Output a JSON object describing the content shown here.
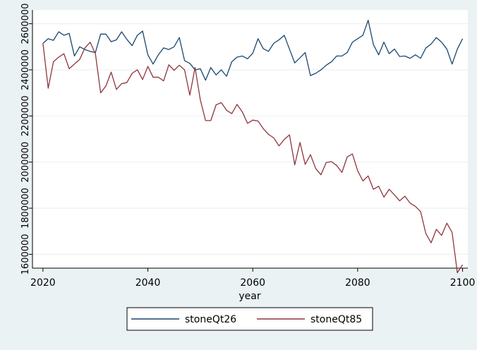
{
  "chart_data": {
    "type": "line",
    "title": "",
    "xlabel": "year",
    "ylabel": "",
    "xlim": [
      2018,
      2101
    ],
    "ylim": [
      1540000,
      2660000
    ],
    "x_ticks": [
      2020,
      2040,
      2060,
      2080,
      2100
    ],
    "y_ticks": [
      1600000,
      1800000,
      2000000,
      2200000,
      2400000,
      2600000
    ],
    "y_tick_labels": [
      "1600000",
      "1800000",
      "2000000",
      "2200000",
      "2400000",
      "2600000"
    ],
    "grid": true,
    "legend_position": "bottom",
    "colors": {
      "background": "#eaf2f3",
      "plot_area": "#ffffff",
      "grid": "#eaf2f3"
    },
    "x": [
      2020,
      2021,
      2022,
      2023,
      2024,
      2025,
      2026,
      2027,
      2028,
      2029,
      2030,
      2031,
      2032,
      2033,
      2034,
      2035,
      2036,
      2037,
      2038,
      2039,
      2040,
      2041,
      2042,
      2043,
      2044,
      2045,
      2046,
      2047,
      2048,
      2049,
      2050,
      2051,
      2052,
      2053,
      2054,
      2055,
      2056,
      2057,
      2058,
      2059,
      2060,
      2061,
      2062,
      2063,
      2064,
      2065,
      2066,
      2067,
      2068,
      2069,
      2070,
      2071,
      2072,
      2073,
      2074,
      2075,
      2076,
      2077,
      2078,
      2079,
      2080,
      2081,
      2082,
      2083,
      2084,
      2085,
      2086,
      2087,
      2088,
      2089,
      2090,
      2091,
      2092,
      2093,
      2094,
      2095,
      2096,
      2097,
      2098,
      2099,
      2100
    ],
    "series": [
      {
        "name": "stoneQt26",
        "color": "#1a476f",
        "values": [
          2515000,
          2535000,
          2528000,
          2565000,
          2550000,
          2558000,
          2460000,
          2500000,
          2488000,
          2480000,
          2475000,
          2555000,
          2555000,
          2522000,
          2530000,
          2565000,
          2532000,
          2505000,
          2550000,
          2568000,
          2465000,
          2425000,
          2465000,
          2495000,
          2488000,
          2500000,
          2540000,
          2440000,
          2428000,
          2400000,
          2405000,
          2355000,
          2410000,
          2378000,
          2400000,
          2372000,
          2435000,
          2455000,
          2460000,
          2448000,
          2472000,
          2535000,
          2492000,
          2480000,
          2515000,
          2530000,
          2550000,
          2490000,
          2430000,
          2452000,
          2475000,
          2375000,
          2385000,
          2400000,
          2420000,
          2435000,
          2460000,
          2460000,
          2475000,
          2520000,
          2535000,
          2550000,
          2615000,
          2510000,
          2465000,
          2520000,
          2470000,
          2490000,
          2458000,
          2460000,
          2450000,
          2465000,
          2450000,
          2495000,
          2512000,
          2540000,
          2520000,
          2490000,
          2425000,
          2490000,
          2535000
        ]
      },
      {
        "name": "stoneQt85",
        "color": "#90353b",
        "values": [
          2515000,
          2320000,
          2435000,
          2455000,
          2470000,
          2405000,
          2425000,
          2445000,
          2495000,
          2520000,
          2470000,
          2300000,
          2330000,
          2390000,
          2315000,
          2340000,
          2345000,
          2385000,
          2400000,
          2358000,
          2415000,
          2368000,
          2368000,
          2352000,
          2422000,
          2398000,
          2420000,
          2400000,
          2290000,
          2410000,
          2270000,
          2180000,
          2180000,
          2248000,
          2258000,
          2225000,
          2210000,
          2250000,
          2218000,
          2168000,
          2182000,
          2178000,
          2145000,
          2120000,
          2105000,
          2070000,
          2098000,
          2118000,
          1988000,
          2085000,
          1990000,
          2032000,
          1972000,
          1945000,
          1998000,
          2002000,
          1985000,
          1955000,
          2022000,
          2035000,
          1962000,
          1918000,
          1940000,
          1882000,
          1895000,
          1848000,
          1882000,
          1858000,
          1832000,
          1852000,
          1822000,
          1808000,
          1785000,
          1690000,
          1650000,
          1708000,
          1682000,
          1735000,
          1695000,
          1520000,
          1555000
        ]
      }
    ]
  }
}
